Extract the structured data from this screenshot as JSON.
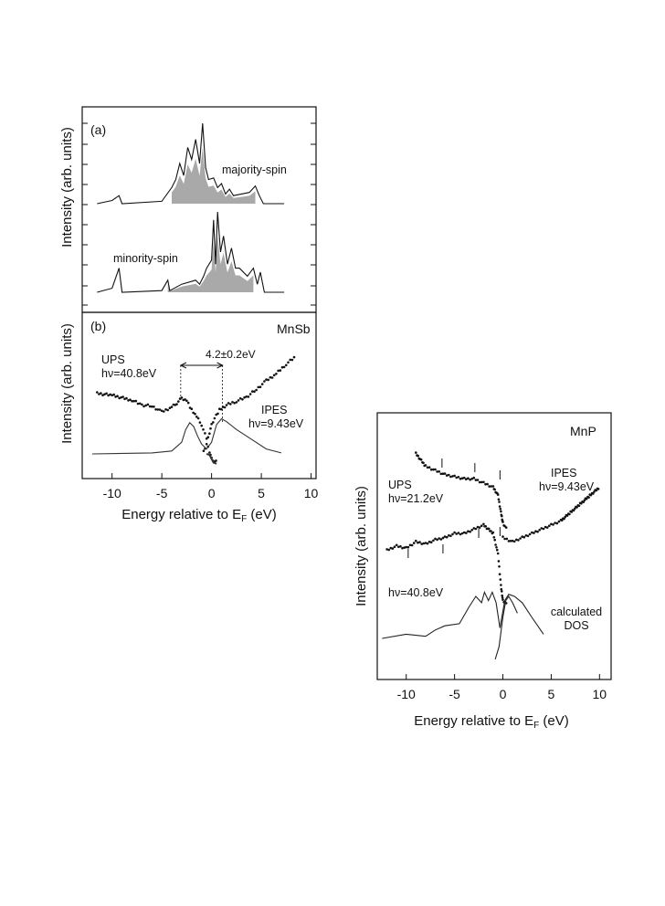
{
  "chart_data": [
    {
      "type": "line",
      "panel": "a",
      "panel_label": "(a)",
      "ylabel": "Intensity (arb. units)",
      "xlim": [
        -13,
        10.5
      ],
      "series": [
        {
          "name": "majority-spin",
          "x": [
            -11.5,
            -10,
            -9.3,
            -9.0,
            -5,
            -4,
            -3.6,
            -3.2,
            -2.8,
            -2.4,
            -2.0,
            -1.6,
            -1.2,
            -0.9,
            -0.6,
            -0.3,
            0.2,
            0.6,
            1.0,
            1.4,
            1.8,
            2.2,
            3.0,
            3.8,
            4.4,
            4.8,
            5.2,
            7.3
          ],
          "y": [
            0,
            0.04,
            0.1,
            0,
            0.03,
            0.2,
            0.3,
            0.5,
            0.35,
            0.7,
            0.55,
            0.8,
            0.5,
            1.0,
            0.45,
            0.3,
            0.32,
            0.2,
            0.25,
            0.12,
            0.18,
            0.1,
            0.12,
            0.14,
            0.22,
            0.1,
            0,
            0
          ]
        },
        {
          "name": "minority-spin",
          "x": [
            -11.5,
            -10,
            -9.3,
            -9.0,
            -5,
            -4.4,
            -4.2,
            -3,
            -1.6,
            -1.2,
            -0.8,
            -0.5,
            0.0,
            0.2,
            0.4,
            0.6,
            0.9,
            1.2,
            1.6,
            2.0,
            2.4,
            2.8,
            3.6,
            4.2,
            4.6,
            4.9,
            5.3,
            7.3
          ],
          "y": [
            0,
            0.05,
            0.3,
            0,
            0.02,
            0.15,
            0.02,
            0.1,
            0.15,
            0.1,
            0.2,
            0.3,
            0.4,
            0.9,
            0.35,
            1.0,
            0.5,
            0.7,
            0.35,
            0.55,
            0.3,
            0.3,
            0.2,
            0.3,
            0.1,
            0.25,
            0,
            0
          ]
        }
      ]
    },
    {
      "type": "scatter",
      "panel": "b",
      "panel_label": "(b)",
      "title": "MnSb",
      "xlabel": "Energy relative to E",
      "xlabel_sub": "F",
      "xlabel_unit": " (eV)",
      "ylabel": "Intensity (arb. units)",
      "xlim": [
        -13,
        10.5
      ],
      "xticks": [
        -10,
        -5,
        0,
        5,
        10
      ],
      "xtick_labels": [
        "-10",
        "-5",
        "0",
        "5",
        "10"
      ],
      "annotation": "4.2±0.2eV",
      "annotation_range": [
        -3.1,
        1.1
      ],
      "series": [
        {
          "name": "UPS\nhν=40.8eV",
          "x": [
            -11.5,
            -10,
            -8,
            -7,
            -6,
            -5,
            -4,
            -3.5,
            -3,
            -2.5,
            -2,
            -1.5,
            -1,
            -0.5,
            -0.2,
            0,
            0.3,
            0.6
          ],
          "y": [
            0.62,
            0.6,
            0.55,
            0.5,
            0.49,
            0.43,
            0.48,
            0.52,
            0.57,
            0.55,
            0.45,
            0.38,
            0.3,
            0.15,
            0.02,
            -0.05,
            -0.08,
            -0.08
          ]
        },
        {
          "name": "IPES\nhν=9.43eV",
          "x": [
            -0.8,
            -0.5,
            -0.2,
            0,
            0.3,
            0.8,
            1.5,
            2.5,
            3.5,
            4.5,
            5.5,
            6.5,
            7.5,
            8.5
          ],
          "y": [
            0.02,
            0.1,
            0.22,
            0.3,
            0.37,
            0.45,
            0.5,
            0.54,
            0.58,
            0.66,
            0.75,
            0.82,
            0.92,
            1.0
          ]
        },
        {
          "name": "",
          "x": [
            -12,
            -6,
            -4,
            -3,
            -2.6,
            -2.2,
            -1.8,
            -1.4,
            -1,
            -0.5,
            0,
            0.5,
            1,
            1.5,
            2.5,
            4,
            5.5,
            7
          ],
          "y": [
            0.0,
            0.01,
            0.03,
            0.12,
            0.25,
            0.32,
            0.28,
            0.18,
            0.1,
            0.05,
            0.12,
            0.3,
            0.36,
            0.33,
            0.25,
            0.15,
            0.05,
            0.01
          ]
        },
        {
          "name": "",
          "x": [
            -0.5,
            -0.2,
            0,
            0.2,
            0.5
          ],
          "y": [
            0.0,
            -0.01,
            -0.05,
            -0.09,
            -0.1
          ]
        }
      ]
    },
    {
      "type": "scatter",
      "title": "MnP",
      "xlabel": "Energy relative to E",
      "xlabel_sub": "F",
      "xlabel_unit": " (eV)",
      "ylabel": "Intensity (arb. units)",
      "xlim": [
        -13,
        11.2
      ],
      "xticks": [
        -10,
        -5,
        0,
        5,
        10
      ],
      "xtick_labels": [
        "-10",
        "-5",
        "0",
        "5",
        "10"
      ],
      "series": [
        {
          "name": "UPS\nhν=21.2eV",
          "x": [
            -9,
            -8,
            -7,
            -6,
            -5,
            -4,
            -3,
            -2,
            -1,
            -0.5,
            -0.2,
            0,
            0.2,
            0.5
          ],
          "y": [
            0.98,
            0.92,
            0.9,
            0.88,
            0.87,
            0.86,
            0.86,
            0.84,
            0.82,
            0.78,
            0.7,
            0.65,
            0.63,
            0.63
          ]
        },
        {
          "name": "hν=40.8eV",
          "x": [
            -12,
            -11,
            -10,
            -9,
            -8,
            -7,
            -6,
            -5,
            -4,
            -3,
            -2,
            -1,
            -0.5,
            -0.2,
            0,
            0.2,
            0.5
          ],
          "y": [
            0.52,
            0.54,
            0.53,
            0.56,
            0.55,
            0.57,
            0.58,
            0.6,
            0.6,
            0.62,
            0.64,
            0.6,
            0.5,
            0.35,
            0.28,
            0.27,
            0.27
          ]
        },
        {
          "name": "IPES\nhν=9.43eV",
          "x": [
            0,
            1,
            2,
            3,
            4,
            5,
            6,
            7,
            8,
            9,
            10
          ],
          "y": [
            0.58,
            0.56,
            0.58,
            0.6,
            0.62,
            0.64,
            0.66,
            0.7,
            0.74,
            0.78,
            0.82
          ]
        },
        {
          "name": "calculated\nDOS",
          "x": [
            -12.5,
            -10,
            -8,
            -7,
            -6,
            -4.5,
            -3.5,
            -2.8,
            -2.2,
            -1.9,
            -1.5,
            -1.1,
            -0.7,
            -0.3,
            0.2,
            0.6,
            1.2,
            2,
            3,
            4.2
          ],
          "y": [
            0.1,
            0.12,
            0.11,
            0.14,
            0.16,
            0.17,
            0.25,
            0.3,
            0.27,
            0.32,
            0.28,
            0.32,
            0.27,
            0.15,
            0.28,
            0.31,
            0.3,
            0.27,
            0.2,
            0.12
          ]
        },
        {
          "name": "",
          "x": [
            -0.8,
            -0.4,
            0,
            0.3,
            0.6,
            1,
            1.5
          ],
          "y": [
            0.0,
            0.06,
            0.2,
            0.28,
            0.3,
            0.27,
            0.22
          ]
        }
      ]
    }
  ]
}
